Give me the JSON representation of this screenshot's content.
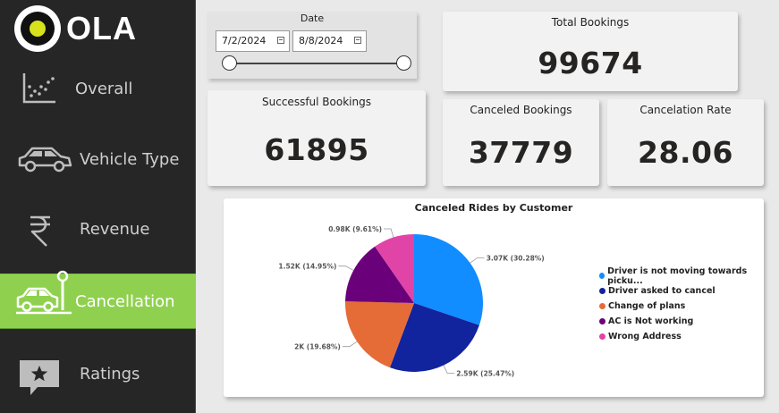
{
  "brand": {
    "logo_text": "OLA"
  },
  "sidebar": {
    "items": [
      {
        "label": "Overall",
        "icon": "scatter-chart-icon",
        "active": false
      },
      {
        "label": "Vehicle Type",
        "icon": "car-icon",
        "active": false
      },
      {
        "label": "Revenue",
        "icon": "rupee-icon",
        "active": false
      },
      {
        "label": "Cancellation",
        "icon": "cancelled-car-icon",
        "active": true
      },
      {
        "label": "Ratings",
        "icon": "star-message-icon",
        "active": false
      }
    ],
    "active_color": "#8fd14f"
  },
  "filters": {
    "date": {
      "label": "Date",
      "start": "7/2/2024",
      "end": "8/8/2024"
    }
  },
  "kpis": {
    "total_bookings": {
      "title": "Total Bookings",
      "value": "99674"
    },
    "successful_bookings": {
      "title": "Successful Bookings",
      "value": "61895"
    },
    "canceled_bookings": {
      "title": "Canceled Bookings",
      "value": "37779"
    },
    "cancelation_rate": {
      "title": "Cancelation Rate",
      "value": "28.06"
    }
  },
  "chart_data": {
    "type": "pie",
    "title": "Canceled Rides by Customer",
    "categories": [
      "Driver is not moving towards picku...",
      "Driver asked to cancel",
      "Change of plans",
      "AC is Not working",
      "Wrong Address"
    ],
    "values": [
      3.07,
      2.59,
      2.0,
      1.52,
      0.98
    ],
    "unit": "K",
    "percentages": [
      30.28,
      25.47,
      19.68,
      14.95,
      9.61
    ],
    "data_labels": [
      "3.07K (30.28%)",
      "2.59K (25.47%)",
      "2K (19.68%)",
      "1.52K (14.95%)",
      "0.98K (9.61%)"
    ],
    "colors": [
      "#118dff",
      "#12239e",
      "#e66c37",
      "#6b007b",
      "#e044a7"
    ],
    "legend_position": "right"
  }
}
